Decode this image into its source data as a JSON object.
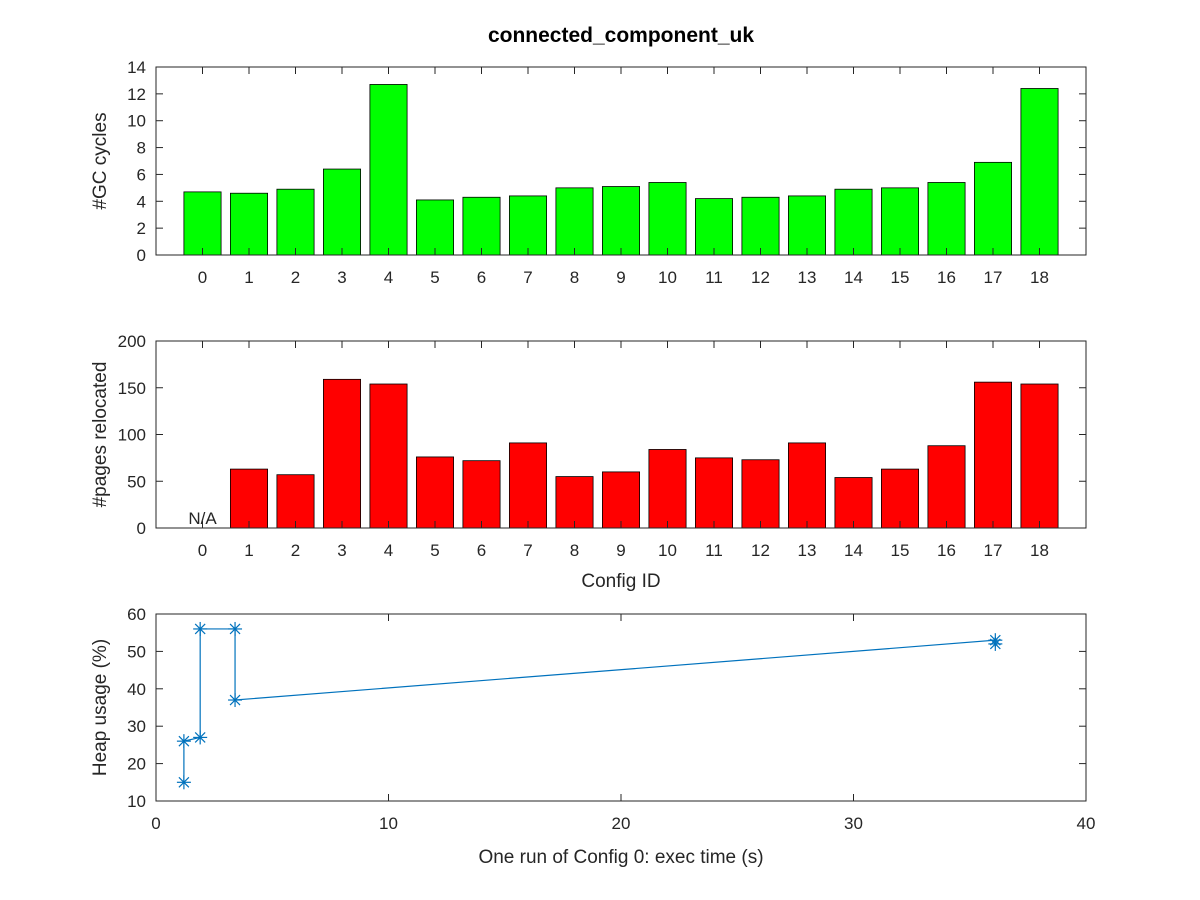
{
  "chart_data": [
    {
      "type": "bar",
      "title": "connected_component_uk",
      "xlabel": "",
      "ylabel": "#GC cycles",
      "categories": [
        "0",
        "1",
        "2",
        "3",
        "4",
        "5",
        "6",
        "7",
        "8",
        "9",
        "10",
        "11",
        "12",
        "13",
        "14",
        "15",
        "16",
        "17",
        "18"
      ],
      "values": [
        4.7,
        4.6,
        4.9,
        6.4,
        12.7,
        4.1,
        4.3,
        4.4,
        5.0,
        5.1,
        5.4,
        4.2,
        4.3,
        4.4,
        4.9,
        5.0,
        5.4,
        6.9,
        12.4
      ],
      "ylim": [
        0,
        14
      ],
      "yticks": [
        0,
        2,
        4,
        6,
        8,
        10,
        12,
        14
      ],
      "bar_color": "#00ff00",
      "grid": false
    },
    {
      "type": "bar",
      "title": "",
      "xlabel": "Config ID",
      "ylabel": "#pages relocated",
      "categories": [
        "0",
        "1",
        "2",
        "3",
        "4",
        "5",
        "6",
        "7",
        "8",
        "9",
        "10",
        "11",
        "12",
        "13",
        "14",
        "15",
        "16",
        "17",
        "18"
      ],
      "values": [
        null,
        63,
        57,
        159,
        154,
        76,
        72,
        91,
        55,
        60,
        84,
        75,
        73,
        91,
        54,
        63,
        88,
        156,
        154
      ],
      "annotations": [
        {
          "category": "0",
          "text": "N/A"
        }
      ],
      "ylim": [
        0,
        200
      ],
      "yticks": [
        0,
        50,
        100,
        150,
        200
      ],
      "bar_color": "#ff0000",
      "grid": false
    },
    {
      "type": "line",
      "title": "",
      "xlabel": "One run  of Config 0: exec time (s)",
      "ylabel": "Heap usage (%)",
      "x": [
        1.2,
        1.2,
        1.9,
        1.9,
        3.4,
        3.4,
        36.1,
        36.1
      ],
      "y": [
        15,
        26,
        27,
        56,
        56,
        37,
        53,
        52
      ],
      "xlim": [
        0,
        40
      ],
      "ylim": [
        10,
        60
      ],
      "xticks": [
        0,
        10,
        20,
        30,
        40
      ],
      "yticks": [
        10,
        20,
        30,
        40,
        50,
        60
      ],
      "marker": "asterisk",
      "line_color": "#0072bd",
      "grid": false
    }
  ]
}
